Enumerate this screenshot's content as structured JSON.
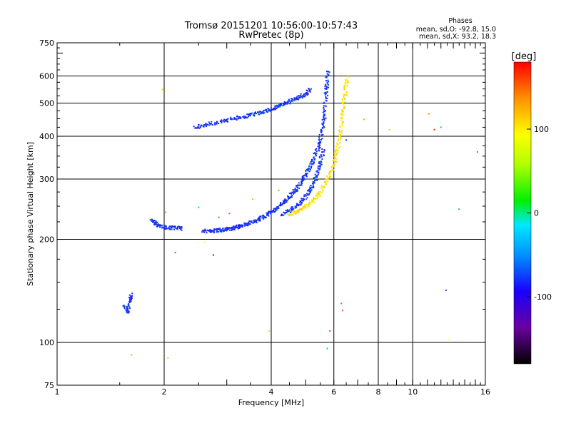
{
  "chart_data": {
    "type": "scatter",
    "title": "Tromsø 20151201 10:56:00-10:57:43",
    "subtitle": "RwPretec (8p)",
    "xlabel": "Frequency [MHz]",
    "ylabel": "Stationary phase Virtual Height [km]",
    "x_scale": "log",
    "y_scale": "log",
    "xlim": [
      1,
      16
    ],
    "ylim": [
      75,
      750
    ],
    "x_ticks": [
      1,
      2,
      4,
      6,
      8,
      10,
      16
    ],
    "x_tick_labels": [
      "1",
      "2",
      "4",
      "6",
      "8",
      "10",
      "16"
    ],
    "y_ticks": [
      75,
      100,
      200,
      300,
      400,
      500,
      600,
      750
    ],
    "y_tick_labels": [
      "75",
      "100",
      "200",
      "300",
      "400",
      "500",
      "600",
      "750"
    ],
    "grid": true,
    "stats": {
      "heading": "Phases",
      "line_o": "mean, sd,O: -92.8, 15.0",
      "line_x": "mean, sd,X:  93.2, 18.3"
    },
    "colorbar": {
      "label": "[deg]",
      "range": [
        -180,
        180
      ],
      "ticks": [
        100,
        0,
        -100
      ],
      "tick_labels": [
        "100",
        "0",
        "-100"
      ],
      "colormap": "rainbow"
    },
    "series": [
      {
        "trace": "o-mode lower ray",
        "phase": -95,
        "points": [
          [
            2.58,
            212
          ],
          [
            2.7,
            211
          ],
          [
            2.8,
            212
          ],
          [
            2.9,
            213
          ],
          [
            3.0,
            214
          ],
          [
            3.1,
            215
          ],
          [
            3.2,
            217
          ],
          [
            3.3,
            219
          ],
          [
            3.45,
            222
          ],
          [
            3.6,
            226
          ],
          [
            3.75,
            231
          ],
          [
            3.9,
            236
          ],
          [
            4.05,
            242
          ],
          [
            4.2,
            249
          ],
          [
            4.35,
            257
          ],
          [
            4.5,
            266
          ],
          [
            4.65,
            276
          ],
          [
            4.8,
            288
          ],
          [
            4.95,
            303
          ],
          [
            5.1,
            320
          ],
          [
            5.25,
            340
          ],
          [
            5.4,
            365
          ],
          [
            5.5,
            390
          ],
          [
            5.6,
            430
          ],
          [
            5.65,
            470
          ],
          [
            5.7,
            520
          ],
          [
            5.74,
            570
          ],
          [
            5.78,
            620
          ]
        ]
      },
      {
        "trace": "o-mode low-frequency ledge",
        "phase": -95,
        "points": [
          [
            1.85,
            227
          ],
          [
            1.9,
            222
          ],
          [
            1.95,
            218
          ],
          [
            2.05,
            216
          ],
          [
            2.15,
            216
          ],
          [
            2.25,
            215
          ]
        ]
      },
      {
        "trace": "o-mode second branch",
        "phase": -95,
        "points": [
          [
            4.3,
            236
          ],
          [
            4.5,
            242
          ],
          [
            4.7,
            250
          ],
          [
            4.9,
            260
          ],
          [
            5.1,
            274
          ],
          [
            5.25,
            290
          ],
          [
            5.4,
            310
          ],
          [
            5.5,
            335
          ],
          [
            5.6,
            365
          ]
        ]
      },
      {
        "trace": "o-mode upper echo",
        "phase": -95,
        "points": [
          [
            2.45,
            425
          ],
          [
            2.6,
            432
          ],
          [
            2.8,
            438
          ],
          [
            3.0,
            445
          ],
          [
            3.2,
            452
          ],
          [
            3.4,
            458
          ],
          [
            3.6,
            464
          ],
          [
            3.8,
            472
          ],
          [
            4.0,
            480
          ],
          [
            4.2,
            490
          ],
          [
            4.4,
            500
          ],
          [
            4.6,
            510
          ],
          [
            4.8,
            520
          ],
          [
            5.0,
            532
          ],
          [
            5.15,
            545
          ]
        ]
      },
      {
        "trace": "x-mode lower ray",
        "phase": 95,
        "points": [
          [
            4.5,
            237
          ],
          [
            4.7,
            240
          ],
          [
            4.9,
            246
          ],
          [
            5.1,
            253
          ],
          [
            5.3,
            262
          ],
          [
            5.5,
            275
          ],
          [
            5.7,
            292
          ],
          [
            5.9,
            315
          ],
          [
            6.05,
            340
          ],
          [
            6.15,
            370
          ],
          [
            6.25,
            405
          ],
          [
            6.32,
            450
          ],
          [
            6.4,
            500
          ],
          [
            6.48,
            550
          ],
          [
            6.55,
            590
          ]
        ]
      },
      {
        "trace": "low isolated echo",
        "phase": -110,
        "points": [
          [
            1.55,
            128
          ],
          [
            1.58,
            122
          ],
          [
            1.6,
            132
          ],
          [
            1.62,
            138
          ]
        ]
      },
      {
        "trace": "scattered points",
        "phase": "mixed",
        "points": [
          [
            1.98,
            548
          ],
          [
            2.02,
            240
          ],
          [
            2.15,
            183
          ],
          [
            2.5,
            248
          ],
          [
            2.6,
            196
          ],
          [
            2.75,
            180
          ],
          [
            2.85,
            232
          ],
          [
            3.05,
            238
          ],
          [
            3.55,
            262
          ],
          [
            3.95,
            108
          ],
          [
            4.2,
            278
          ],
          [
            5.85,
            108
          ],
          [
            5.75,
            96
          ],
          [
            6.3,
            610
          ],
          [
            6.5,
            390
          ],
          [
            6.3,
            130
          ],
          [
            6.35,
            124
          ],
          [
            7.3,
            448
          ],
          [
            8.6,
            418
          ],
          [
            11.1,
            465
          ],
          [
            11.5,
            418
          ],
          [
            12.0,
            425
          ],
          [
            12.6,
            102
          ],
          [
            12.4,
            142
          ],
          [
            13.5,
            245
          ],
          [
            15.2,
            360
          ],
          [
            1.62,
            92
          ],
          [
            2.05,
            90
          ]
        ]
      }
    ]
  }
}
